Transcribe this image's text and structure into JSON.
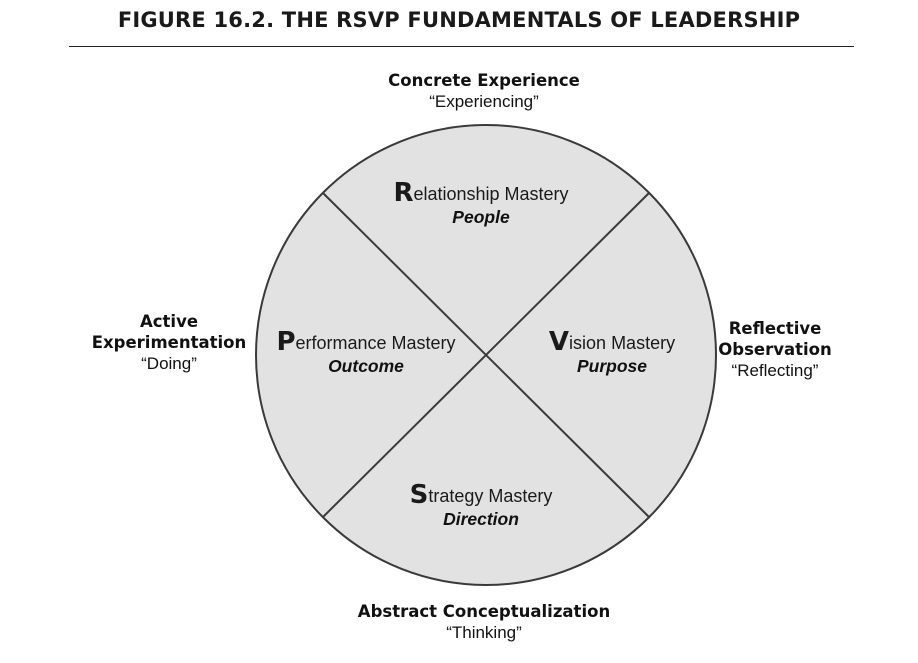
{
  "title": "FIGURE 16.2.  THE RSVP FUNDAMENTALS OF LEADERSHIP",
  "poles": {
    "top": {
      "heading": "Concrete Experience",
      "quote": "“Experiencing”"
    },
    "right": {
      "heading_line1": "Reflective",
      "heading_line2": "Observation",
      "quote": "“Reflecting”"
    },
    "bottom": {
      "heading": "Abstract Conceptualization",
      "quote": "“Thinking”"
    },
    "left": {
      "heading_line1": "Active",
      "heading_line2": "Experimentation",
      "quote": "“Doing”"
    }
  },
  "quadrants": {
    "top": {
      "initial": "R",
      "rest": "elationship Mastery",
      "focus": "People"
    },
    "right": {
      "initial": "V",
      "rest": "ision Mastery",
      "focus": "Purpose"
    },
    "bottom": {
      "initial": "S",
      "rest": "trategy Mastery",
      "focus": "Direction"
    },
    "left": {
      "initial": "P",
      "rest": "erformance Mastery",
      "focus": "Outcome"
    }
  },
  "colors": {
    "circle_fill": "#e2e2e2",
    "stroke": "#3a3a3a"
  }
}
